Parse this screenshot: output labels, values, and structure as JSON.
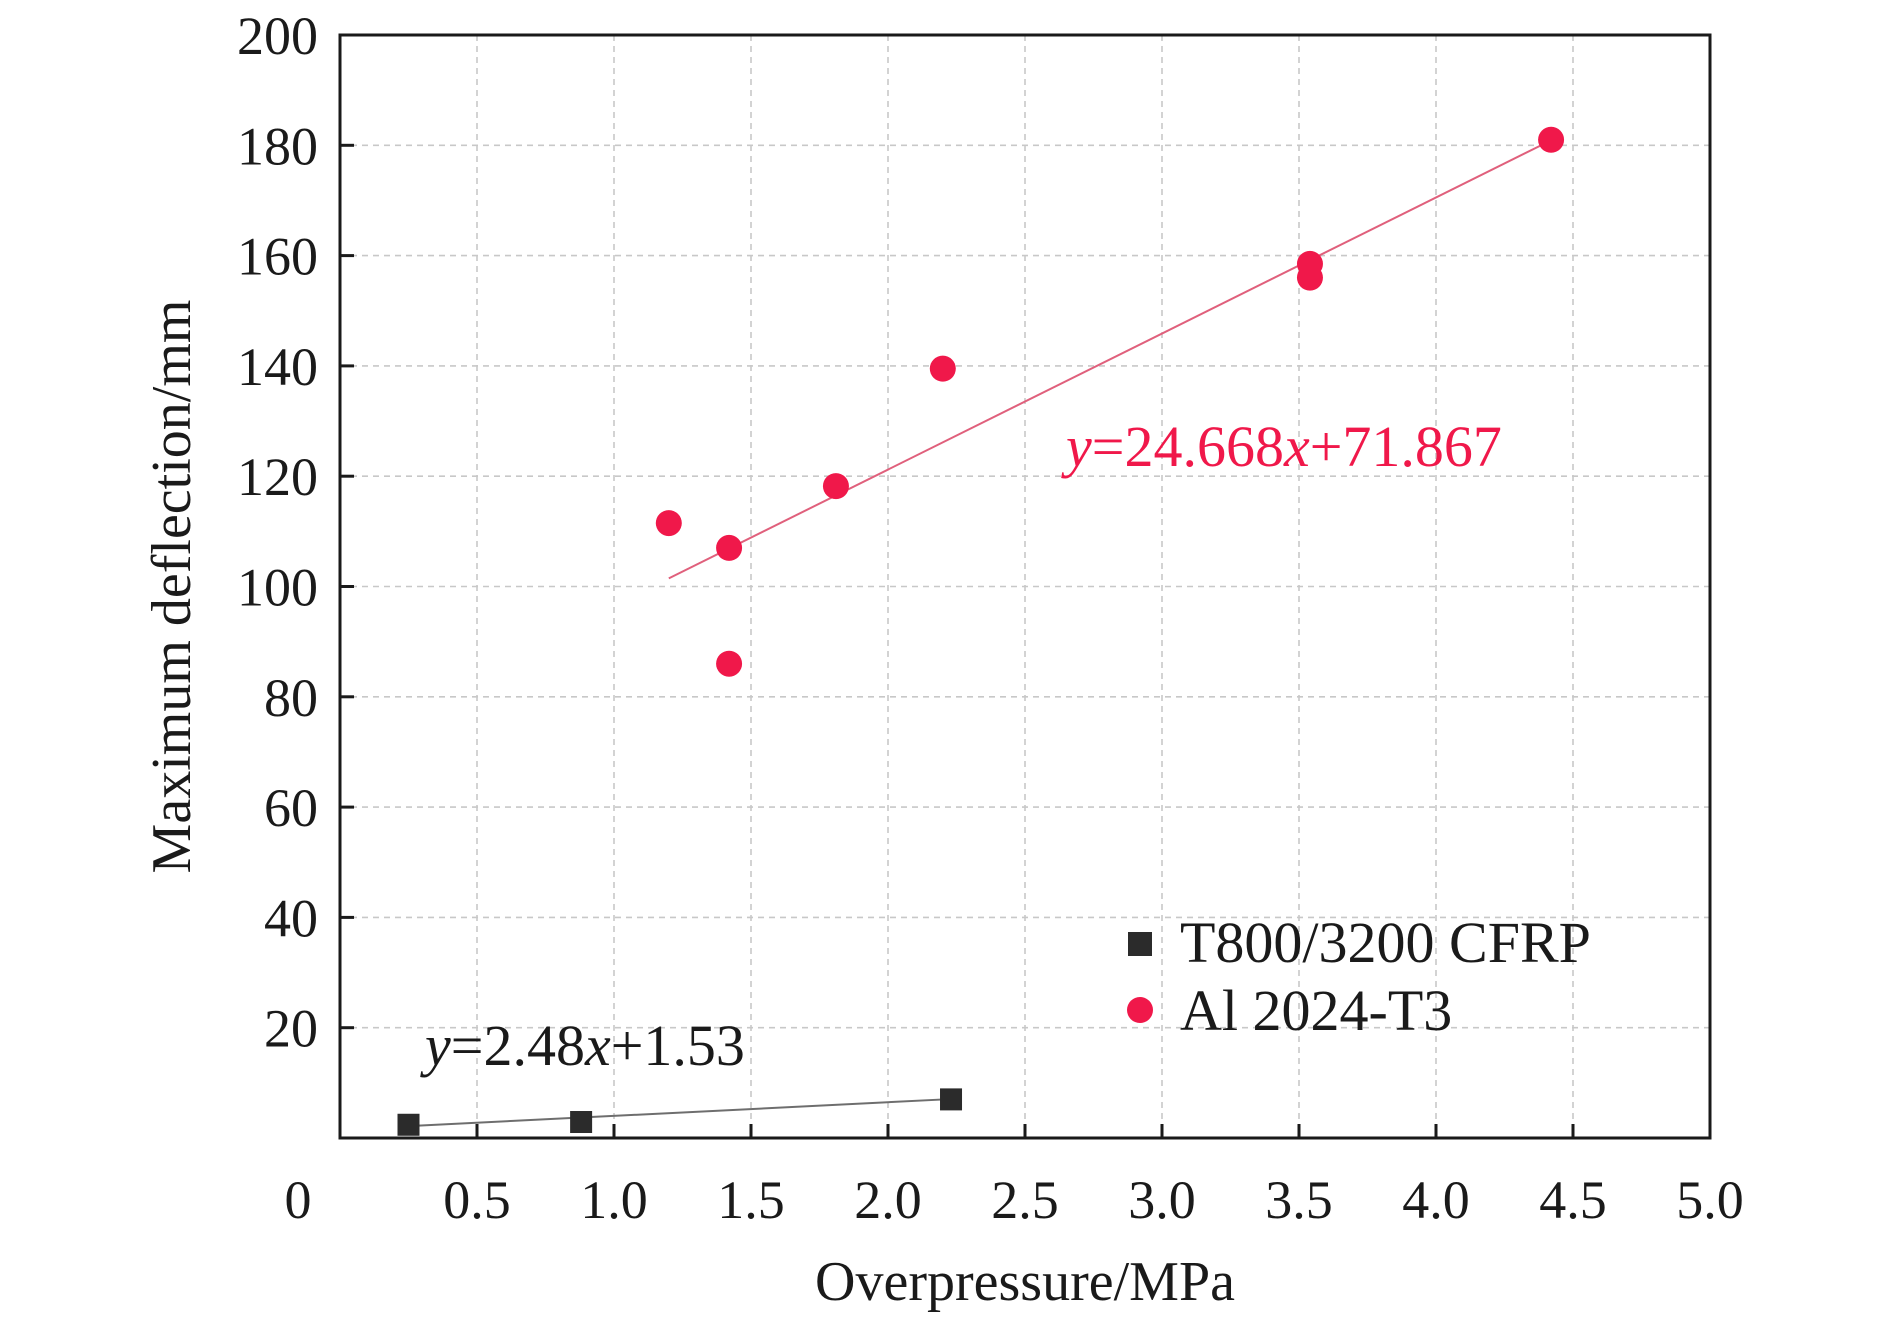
{
  "chart_data": {
    "type": "scatter",
    "xlabel": "Overpressure/MPa",
    "ylabel": "Maximum deflection/mm",
    "xlim": [
      0,
      5.0
    ],
    "ylim": [
      0,
      200
    ],
    "x_ticks": [
      0,
      0.5,
      1.0,
      1.5,
      2.0,
      2.5,
      3.0,
      3.5,
      4.0,
      4.5,
      5.0
    ],
    "x_tick_labels": [
      "0",
      "0.5",
      "1.0",
      "1.5",
      "2.0",
      "2.5",
      "3.0",
      "3.5",
      "4.0",
      "4.5",
      "5.0"
    ],
    "y_ticks": [
      20,
      40,
      60,
      80,
      100,
      120,
      140,
      160,
      180,
      200
    ],
    "y_tick_labels": [
      "20",
      "40",
      "60",
      "80",
      "100",
      "120",
      "140",
      "160",
      "180",
      "200"
    ],
    "grid": true,
    "legend_position": "bottom-right",
    "series": [
      {
        "name": "T800/3200 CFRP",
        "marker": "square",
        "color": "#2b2b2b",
        "points": [
          [
            0.25,
            2.4
          ],
          [
            0.88,
            2.9
          ],
          [
            2.23,
            7.0
          ]
        ],
        "fit": {
          "slope": 2.48,
          "intercept": 1.53,
          "x_range": [
            0.25,
            2.23
          ],
          "color": "#6e6e6e",
          "label": {
            "v1": "y",
            "p1": "=2.48",
            "v2": "x",
            "p2": "+1.53"
          }
        }
      },
      {
        "name": "Al 2024-T3",
        "marker": "circle",
        "color": "#f0184a",
        "points": [
          [
            1.2,
            111.5
          ],
          [
            1.42,
            107
          ],
          [
            1.42,
            86
          ],
          [
            1.81,
            118.2
          ],
          [
            2.2,
            139.5
          ],
          [
            3.54,
            158.5
          ],
          [
            3.54,
            156
          ],
          [
            4.42,
            181
          ]
        ],
        "fit": {
          "slope": 24.668,
          "intercept": 71.867,
          "x_range": [
            1.2,
            4.42
          ],
          "color": "#e0607c",
          "label": {
            "v1": "y",
            "p1": "=24.668",
            "v2": "x",
            "p2": "+71.867"
          }
        }
      }
    ]
  }
}
